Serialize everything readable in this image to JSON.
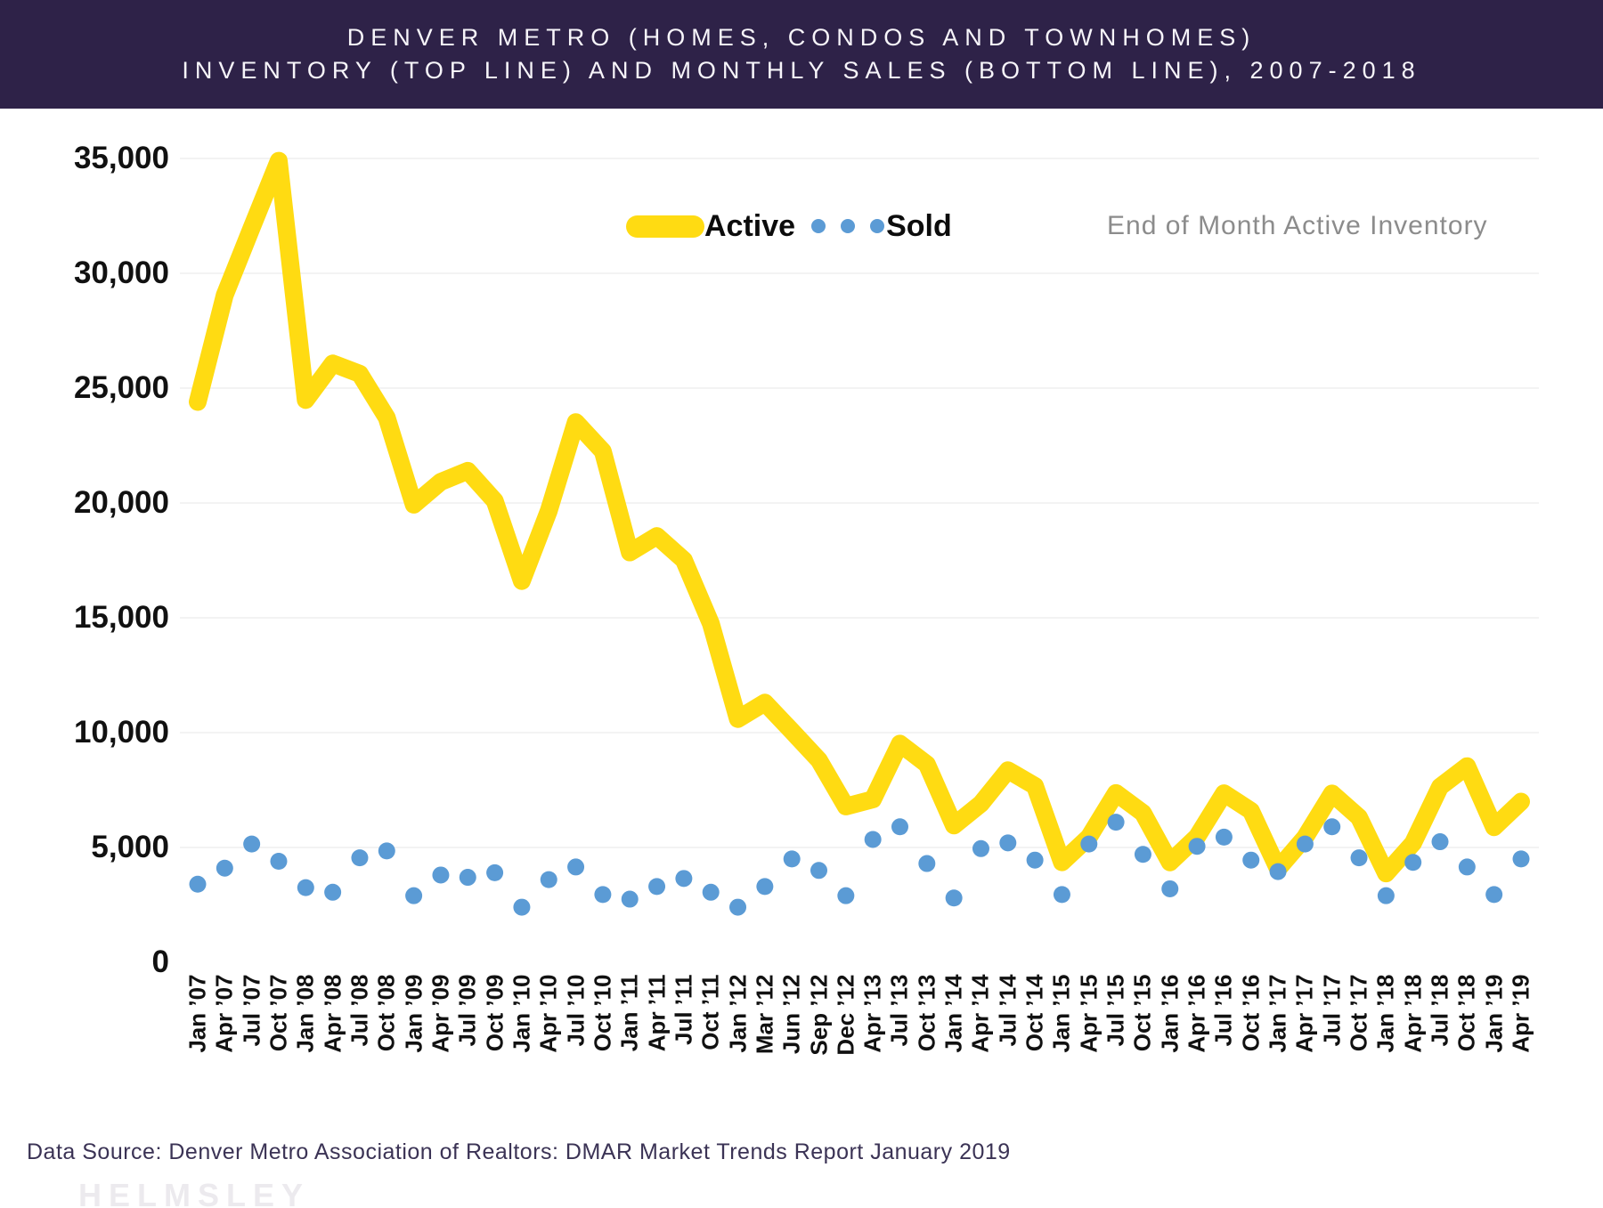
{
  "header": {
    "title_line1": "DENVER METRO (HOMES, CONDOS AND TOWNHOMES)",
    "title_line2": "INVENTORY (TOP LINE) AND MONTHLY SALES (BOTTOM LINE), 2007-2018",
    "background_color": "#2e2248",
    "text_color": "#f7f5fa"
  },
  "legend": {
    "active_label": "Active",
    "sold_label": "Sold"
  },
  "annotation": "End of Month Active Inventory",
  "footer": {
    "data_source": "Data Source: Denver Metro Association of Realtors: DMAR Market Trends Report January 2019",
    "watermark": "HELMSLEY"
  },
  "colors": {
    "active_line": "#ffdb12",
    "sold_dot": "#5b9bd5",
    "axis_text": "#111111",
    "gridline": "#f3f3f3"
  },
  "chart_data": {
    "type": "line",
    "title": "Denver Metro (Homes, Condos and Townhomes) Inventory and Monthly Sales, 2007-2018",
    "xlabel": "",
    "ylabel": "",
    "ylim": [
      0,
      35000
    ],
    "ytick_step": 5000,
    "ytick_labels": [
      "35,000",
      "30,000",
      "25,000",
      "20,000",
      "15,000",
      "10,000",
      "5,000",
      "0"
    ],
    "grid": "faint horizontal",
    "legend_position": "top-center",
    "categories": [
      "Jan ’07",
      "Apr ’07",
      "Jul ’07",
      "Oct ’07",
      "Jan ’08",
      "Apr ’08",
      "Jul ’08",
      "Oct ’08",
      "Jan ’09",
      "Apr ’09",
      "Jul ’09",
      "Oct ’09",
      "Jan ’10",
      "Apr ’10",
      "Jul ’10",
      "Oct ’10",
      "Jan ’11",
      "Apr ’11",
      "Jul ’11",
      "Oct ’11",
      "Jan ’12",
      "Mar ’12",
      "Jun ’12",
      "Sep ’12",
      "Dec ’12",
      "Apr ’13",
      "Jul ’13",
      "Oct ’13",
      "Jan ’14",
      "Apr ’14",
      "Jul ’14",
      "Oct ’14",
      "Jan ’15",
      "Apr ’15",
      "Jul ’15",
      "Oct ’15",
      "Jan ’16",
      "Apr ’16",
      "Jul ’16",
      "Oct ’16",
      "Jan ’17",
      "Apr ’17",
      "Jul ’17",
      "Oct ’17",
      "Jan ’18",
      "Apr ’18",
      "Jul ’18",
      "Oct ’18",
      "Jan ’19",
      "Apr ’19"
    ],
    "series": [
      {
        "name": "Active",
        "render": "line",
        "color": "#ffdb12",
        "values": [
          24400,
          29045,
          31989,
          34900,
          24482,
          26073,
          25625,
          23716,
          19925,
          20921,
          21399,
          20088,
          16601,
          19660,
          23518,
          22251,
          17847,
          18560,
          17517,
          14751,
          10593,
          11307,
          10066,
          8807,
          6786,
          7094,
          9520,
          8622,
          5957,
          6907,
          8363,
          7679,
          4355,
          5453,
          7371,
          6500,
          4350,
          5463,
          7360,
          6594,
          4070,
          5436,
          7352,
          6312,
          3869,
          5189,
          7643,
          8539,
          5881,
          6998
        ]
      },
      {
        "name": "Sold",
        "render": "scatter",
        "color": "#5b9bd5",
        "values": [
          3400,
          4100,
          5150,
          4400,
          3250,
          3050,
          4550,
          4850,
          2900,
          3800,
          3700,
          3900,
          2400,
          3600,
          4150,
          2950,
          2750,
          3300,
          3650,
          3050,
          2400,
          3300,
          4500,
          4000,
          2900,
          5350,
          5900,
          4300,
          2800,
          4950,
          5200,
          4450,
          2950,
          5150,
          6100,
          4700,
          3200,
          5050,
          5450,
          4450,
          3950,
          5150,
          5900,
          4550,
          2900,
          4350,
          5250,
          4150,
          2950,
          4500
        ]
      }
    ]
  }
}
